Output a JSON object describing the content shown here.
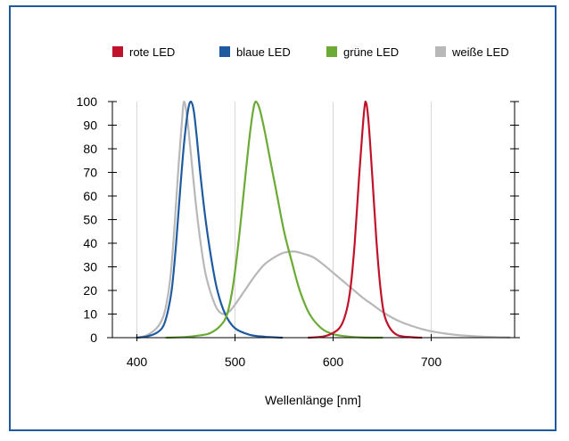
{
  "chart_data": {
    "type": "line",
    "title": "",
    "xlabel": "Wellenlänge [nm]",
    "ylabel": "",
    "xlim": [
      375,
      785
    ],
    "ylim": [
      0,
      100
    ],
    "x_ticks": [
      400,
      500,
      600,
      700
    ],
    "y_ticks": [
      0,
      10,
      20,
      30,
      40,
      50,
      60,
      70,
      80,
      90,
      100
    ],
    "grid": "vertical",
    "legend_position": "top",
    "series": [
      {
        "name": "rote LED",
        "color": "#c0122a",
        "points": [
          [
            575,
            0
          ],
          [
            590,
            0.5
          ],
          [
            600,
            2
          ],
          [
            608,
            5
          ],
          [
            614,
            12
          ],
          [
            618,
            22
          ],
          [
            622,
            40
          ],
          [
            626,
            65
          ],
          [
            630,
            88
          ],
          [
            633,
            100
          ],
          [
            636,
            92
          ],
          [
            640,
            68
          ],
          [
            644,
            42
          ],
          [
            648,
            22
          ],
          [
            652,
            10
          ],
          [
            658,
            4
          ],
          [
            666,
            1
          ],
          [
            680,
            0.2
          ],
          [
            690,
            0
          ]
        ]
      },
      {
        "name": "blaue LED",
        "color": "#1f5aa0",
        "points": [
          [
            400,
            0
          ],
          [
            410,
            0.5
          ],
          [
            420,
            2
          ],
          [
            427,
            5
          ],
          [
            432,
            12
          ],
          [
            436,
            22
          ],
          [
            440,
            40
          ],
          [
            444,
            62
          ],
          [
            448,
            82
          ],
          [
            452,
            96
          ],
          [
            455,
            100
          ],
          [
            458,
            96
          ],
          [
            461,
            85
          ],
          [
            465,
            68
          ],
          [
            470,
            50
          ],
          [
            476,
            33
          ],
          [
            482,
            20
          ],
          [
            490,
            10
          ],
          [
            500,
            4
          ],
          [
            515,
            1.2
          ],
          [
            530,
            0.4
          ],
          [
            548,
            0
          ]
        ]
      },
      {
        "name": "grüne LED",
        "color": "#6aaa35",
        "points": [
          [
            430,
            0
          ],
          [
            450,
            0.3
          ],
          [
            465,
            1
          ],
          [
            475,
            2
          ],
          [
            485,
            5
          ],
          [
            492,
            10
          ],
          [
            498,
            22
          ],
          [
            504,
            42
          ],
          [
            509,
            62
          ],
          [
            514,
            82
          ],
          [
            518,
            95
          ],
          [
            521,
            100
          ],
          [
            525,
            97
          ],
          [
            530,
            88
          ],
          [
            536,
            75
          ],
          [
            543,
            60
          ],
          [
            550,
            45
          ],
          [
            558,
            32
          ],
          [
            566,
            20
          ],
          [
            576,
            10
          ],
          [
            588,
            4
          ],
          [
            600,
            1.5
          ],
          [
            615,
            0.5
          ],
          [
            630,
            0.1
          ],
          [
            650,
            0
          ]
        ]
      },
      {
        "name": "weiße LED",
        "color": "#b8b8b8",
        "points": [
          [
            400,
            0
          ],
          [
            410,
            1
          ],
          [
            420,
            4
          ],
          [
            426,
            8
          ],
          [
            430,
            14
          ],
          [
            434,
            25
          ],
          [
            438,
            45
          ],
          [
            442,
            70
          ],
          [
            446,
            92
          ],
          [
            448,
            100
          ],
          [
            451,
            94
          ],
          [
            455,
            78
          ],
          [
            460,
            57
          ],
          [
            465,
            40
          ],
          [
            470,
            27
          ],
          [
            476,
            18
          ],
          [
            482,
            12
          ],
          [
            488,
            10
          ],
          [
            494,
            11
          ],
          [
            500,
            14
          ],
          [
            510,
            20
          ],
          [
            520,
            26
          ],
          [
            530,
            31
          ],
          [
            540,
            34
          ],
          [
            550,
            36
          ],
          [
            560,
            36.5
          ],
          [
            570,
            35.5
          ],
          [
            580,
            34
          ],
          [
            590,
            31
          ],
          [
            600,
            27.5
          ],
          [
            610,
            24
          ],
          [
            620,
            20.5
          ],
          [
            630,
            17
          ],
          [
            640,
            14
          ],
          [
            650,
            11
          ],
          [
            660,
            8.5
          ],
          [
            670,
            6.5
          ],
          [
            680,
            5
          ],
          [
            690,
            3.7
          ],
          [
            700,
            2.7
          ],
          [
            715,
            1.7
          ],
          [
            730,
            1
          ],
          [
            745,
            0.6
          ],
          [
            760,
            0.3
          ],
          [
            780,
            0.1
          ]
        ]
      }
    ]
  }
}
